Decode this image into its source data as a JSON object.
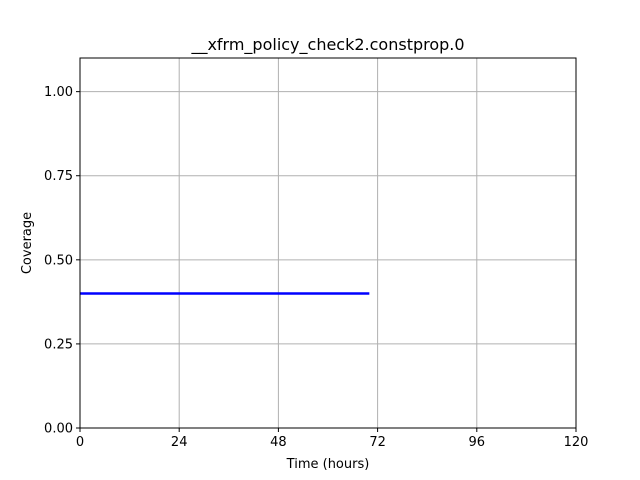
{
  "chart_data": {
    "type": "line",
    "title": "__xfrm_policy_check2.constprop.0",
    "xlabel": "Time (hours)",
    "ylabel": "Coverage",
    "xlim": [
      0,
      120
    ],
    "ylim": [
      0,
      1.1
    ],
    "xticks": [
      0,
      24,
      48,
      72,
      96,
      120
    ],
    "xtick_labels": [
      "0",
      "24",
      "48",
      "72",
      "96",
      "120"
    ],
    "yticks": [
      0,
      0.25,
      0.5,
      0.75,
      1.0
    ],
    "ytick_labels": [
      "0.00",
      "0.25",
      "0.50",
      "0.75",
      "1.00"
    ],
    "grid": true,
    "series": [
      {
        "color": "#0000ff",
        "x": [
          0,
          70
        ],
        "y": [
          0.4,
          0.4
        ]
      }
    ]
  }
}
